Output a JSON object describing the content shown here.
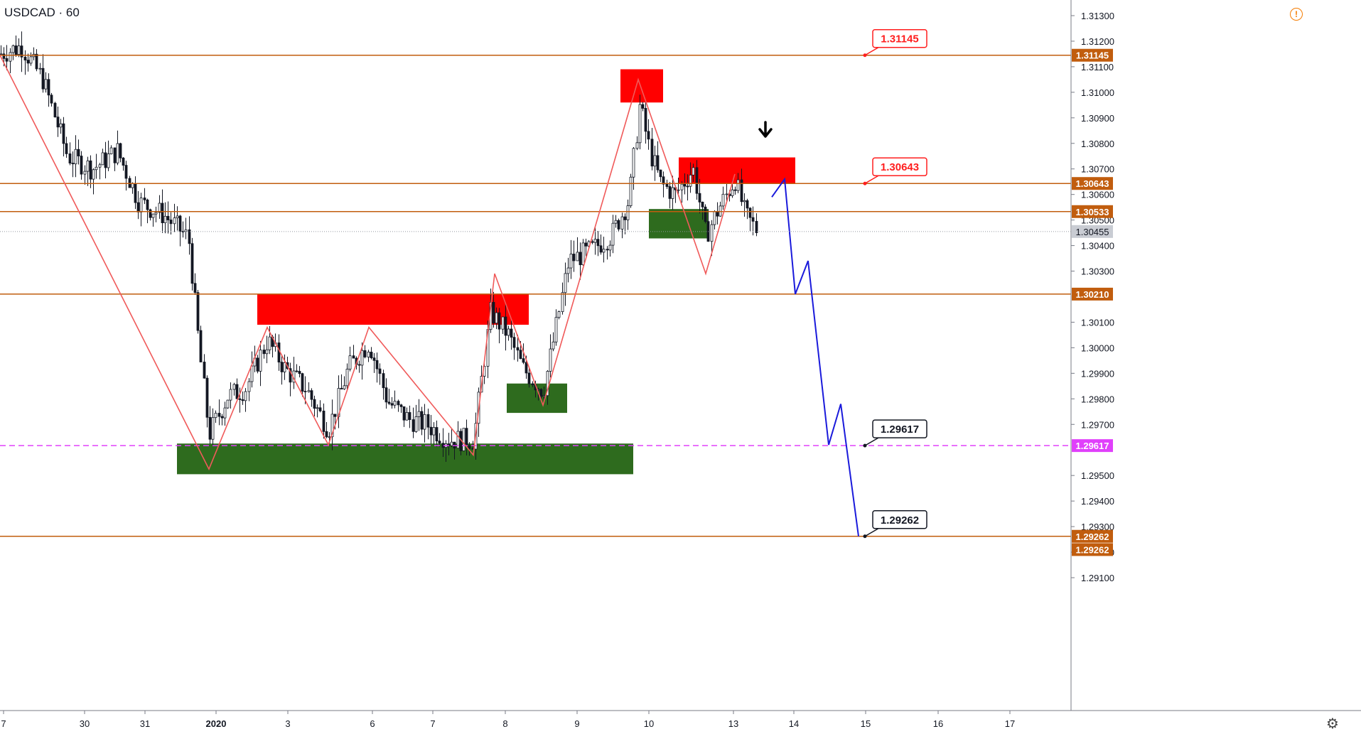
{
  "symbol": "USDCAD · 60",
  "warning_icon": "warning-icon",
  "settings_icon": "gear-icon",
  "current_price": "1.30455",
  "chart_data": {
    "type": "candlestick",
    "ylim": [
      1.29,
      1.3135
    ],
    "y_ticks": [
      "1.29100",
      "1.29200",
      "1.29300",
      "1.29400",
      "1.29500",
      "1.29700",
      "1.29800",
      "1.29900",
      "1.30000",
      "1.30100",
      "1.30300",
      "1.30400",
      "1.30500",
      "1.30600",
      "1.30700",
      "1.30800",
      "1.30900",
      "1.31000",
      "1.31100",
      "1.31200",
      "1.31300"
    ],
    "x_ticks": [
      {
        "label": "7",
        "x": 5
      },
      {
        "label": "30",
        "x": 119
      },
      {
        "label": "31",
        "x": 204
      },
      {
        "label": "2020",
        "x": 304,
        "bold": true
      },
      {
        "label": "3",
        "x": 405
      },
      {
        "label": "6",
        "x": 524
      },
      {
        "label": "7",
        "x": 609
      },
      {
        "label": "8",
        "x": 711
      },
      {
        "label": "9",
        "x": 812
      },
      {
        "label": "10",
        "x": 913
      },
      {
        "label": "13",
        "x": 1032
      },
      {
        "label": "14",
        "x": 1117
      },
      {
        "label": "15",
        "x": 1218
      },
      {
        "label": "16",
        "x": 1320
      },
      {
        "label": "17",
        "x": 1421
      }
    ],
    "levels": [
      {
        "value": 1.31145,
        "label": "1.31145",
        "color": "#c15d0e",
        "style": "solid"
      },
      {
        "value": 1.30643,
        "label": "1.30643",
        "color": "#c15d0e",
        "style": "solid"
      },
      {
        "value": 1.30533,
        "label": "1.30533",
        "color": "#c15d0e",
        "style": "solid"
      },
      {
        "value": 1.3021,
        "label": "1.30210",
        "color": "#c15d0e",
        "style": "solid"
      },
      {
        "value": 1.29617,
        "label": "1.29617",
        "color": "#e040fb",
        "style": "dashed"
      },
      {
        "value": 1.29262,
        "label": "1.29262",
        "color": "#c15d0e",
        "style": "solid"
      }
    ],
    "extra_axis_label": {
      "label": "1.29262",
      "value": 1.2921,
      "color": "#c15d0e"
    },
    "callouts": [
      {
        "label": "1.31145",
        "value": 1.31145,
        "type": "red"
      },
      {
        "label": "1.30643",
        "value": 1.30643,
        "type": "red"
      },
      {
        "label": "1.29617",
        "value": 1.29617,
        "type": "black"
      },
      {
        "label": "1.29262",
        "value": 1.29262,
        "type": "black"
      }
    ],
    "zones": [
      {
        "type": "supply",
        "x1": 873,
        "x2": 933,
        "y1": 1.3109,
        "y2": 1.3096
      },
      {
        "type": "supply",
        "x1": 955,
        "x2": 1119,
        "y1": 1.30745,
        "y2": 1.30643
      },
      {
        "type": "supply",
        "x1": 362,
        "x2": 744,
        "y1": 1.3021,
        "y2": 1.3009
      },
      {
        "type": "demand",
        "x1": 913,
        "x2": 997,
        "y1": 1.30543,
        "y2": 1.30428
      },
      {
        "type": "demand",
        "x1": 713,
        "x2": 798,
        "y1": 1.2986,
        "y2": 1.29745
      },
      {
        "type": "demand",
        "x1": 249,
        "x2": 891,
        "y1": 1.29625,
        "y2": 1.29505
      }
    ],
    "zigzag": [
      [
        0,
        1.31145
      ],
      [
        294,
        1.29525
      ],
      [
        376,
        1.3008
      ],
      [
        462,
        1.2962
      ],
      [
        519,
        1.3008
      ],
      [
        666,
        1.2958
      ],
      [
        696,
        1.3029
      ],
      [
        764,
        1.29775
      ],
      [
        898,
        1.3105
      ],
      [
        993,
        1.3029
      ],
      [
        1034,
        1.3068
      ]
    ],
    "projection": [
      [
        1086,
        1.3059
      ],
      [
        1104,
        1.3066
      ],
      [
        1119,
        1.3021
      ],
      [
        1137,
        1.3034
      ],
      [
        1166,
        1.2962
      ],
      [
        1183,
        1.2978
      ],
      [
        1208,
        1.29262
      ]
    ],
    "candles_anchor": [
      [
        0,
        1.3115
      ],
      [
        30,
        1.3118
      ],
      [
        60,
        1.3105
      ],
      [
        95,
        1.3075
      ],
      [
        130,
        1.307
      ],
      [
        165,
        1.3077
      ],
      [
        195,
        1.3057
      ],
      [
        230,
        1.3052
      ],
      [
        265,
        1.3043
      ],
      [
        280,
        1.3
      ],
      [
        294,
        1.2966
      ],
      [
        320,
        1.2981
      ],
      [
        345,
        1.2984
      ],
      [
        376,
        1.3003
      ],
      [
        400,
        1.2992
      ],
      [
        430,
        1.2984
      ],
      [
        462,
        1.2968
      ],
      [
        490,
        1.2992
      ],
      [
        519,
        1.3002
      ],
      [
        545,
        1.2979
      ],
      [
        575,
        1.2972
      ],
      [
        600,
        1.297
      ],
      [
        630,
        1.2964
      ],
      [
        666,
        1.2964
      ],
      [
        690,
        1.3014
      ],
      [
        715,
        1.3005
      ],
      [
        735,
        1.2992
      ],
      [
        764,
        1.2983
      ],
      [
        780,
        1.3005
      ],
      [
        800,
        1.3034
      ],
      [
        830,
        1.3038
      ],
      [
        860,
        1.3044
      ],
      [
        885,
        1.3058
      ],
      [
        900,
        1.3095
      ],
      [
        915,
        1.3076
      ],
      [
        930,
        1.3064
      ],
      [
        950,
        1.306
      ],
      [
        975,
        1.307
      ],
      [
        993,
        1.3044
      ],
      [
        1010,
        1.3054
      ],
      [
        1034,
        1.3066
      ],
      [
        1048,
        1.3052
      ],
      [
        1066,
        1.30455
      ]
    ]
  }
}
